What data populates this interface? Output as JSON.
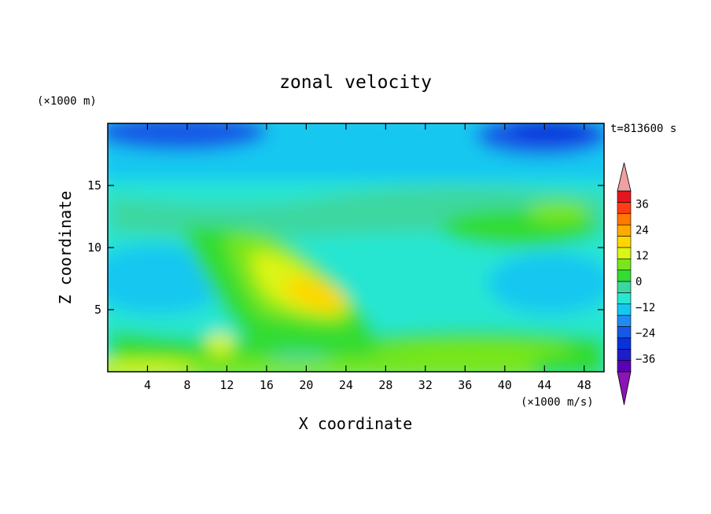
{
  "chart_data": {
    "type": "heatmap",
    "title": "zonal velocity",
    "xlabel": "X coordinate",
    "ylabel": "Z coordinate",
    "x_unit": "(×1000 m/s)",
    "y_unit": "(×1000 m)",
    "time_label": "t=813600 s",
    "xlim": [
      0,
      50
    ],
    "ylim": [
      0,
      20
    ],
    "x_ticks": [
      4,
      8,
      12,
      16,
      20,
      24,
      28,
      32,
      36,
      40,
      44,
      48
    ],
    "y_ticks": [
      5,
      10,
      15
    ],
    "colorbar": {
      "tick_values": [
        36,
        24,
        12,
        0,
        -12,
        -24,
        -36
      ],
      "tick_labels": [
        "36",
        "24",
        "12",
        "0",
        "−12",
        "−24",
        "−36"
      ],
      "levels": [
        -42,
        -36,
        -30,
        -24,
        -18,
        -12,
        -6,
        0,
        6,
        12,
        18,
        24,
        30,
        36,
        42
      ],
      "colors": [
        "#5a00b4",
        "#1e1ec8",
        "#0a32dc",
        "#145ae6",
        "#1e8cf0",
        "#14c8f0",
        "#28e6d2",
        "#3cd7a0",
        "#32dc32",
        "#78e61e",
        "#dcf514",
        "#ffd700",
        "#ffaa00",
        "#ff7800",
        "#ff3c14",
        "#e6141e"
      ],
      "under_color": "#8a14b4",
      "over_color": "#f0a0a0",
      "extend": "both"
    },
    "field_features": [
      {
        "region": "upper jet, z 18–20, x 0–16",
        "value": -22
      },
      {
        "region": "upper jet, z 18–20, x 38–50",
        "value": -20
      },
      {
        "region": "upper layer, z 14–18",
        "value": -12
      },
      {
        "region": "tilted core, x 16–26, z 4–10",
        "value": 14
      },
      {
        "region": "surface layer, z 0–1, x 0–10",
        "value": 12
      },
      {
        "region": "right mid band, x 36–50, z 10–13",
        "value": 4
      },
      {
        "region": "lower band, x 28–48, z 1–3",
        "value": 8
      },
      {
        "region": "left mid, x 0–12, z 4–9",
        "value": -6
      }
    ]
  }
}
